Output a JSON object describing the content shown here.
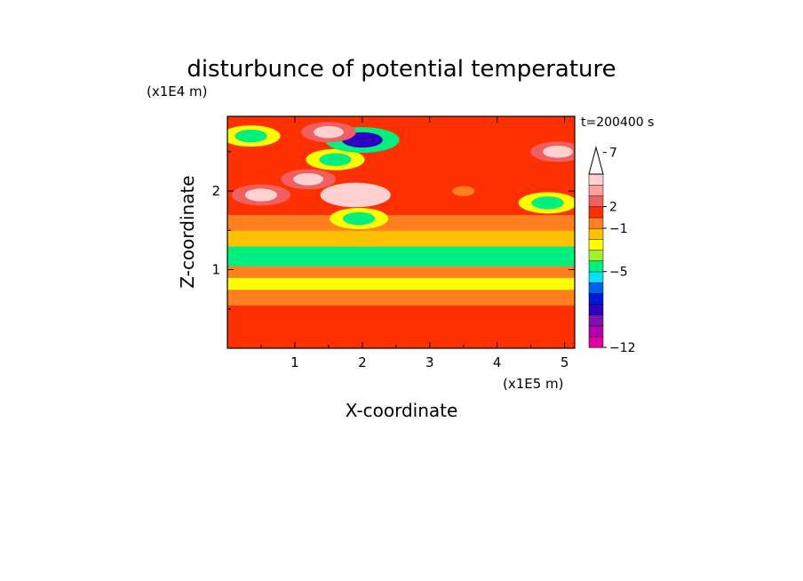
{
  "chart_data": {
    "type": "heatmap",
    "title": "disturbunce of potential temperature",
    "xlabel": "X-coordinate",
    "ylabel": "Z-coordinate",
    "x_scale_label": "(x1E5 m)",
    "y_scale_label": "(x1E4 m)",
    "time_label": "t=200400 s",
    "xlim": [
      0,
      5.15
    ],
    "ylim": [
      0,
      2.95
    ],
    "x_ticks": [
      1,
      2,
      3,
      4,
      5
    ],
    "y_ticks": [
      1,
      2
    ],
    "colorbar": {
      "levels": [
        -12,
        -11,
        -10,
        -9,
        -8,
        -7,
        -6,
        -5,
        -4,
        -3,
        -2,
        -1,
        1,
        2,
        3,
        4,
        5,
        6,
        7,
        8,
        9,
        10
      ],
      "tick_values": [
        -12,
        -5,
        -1,
        2,
        7
      ],
      "tick_labels": [
        "−12",
        "−5",
        "−1",
        "2",
        "7"
      ],
      "colors": [
        "#e000a0",
        "#b000b0",
        "#8010b0",
        "#3000c0",
        "#0018d8",
        "#0060f0",
        "#00e0ff",
        "#00f080",
        "#a0f030",
        "#ffff00",
        "#ffc000",
        "#ff8020",
        "#ff3000",
        "#f06060",
        "#ffa0a0",
        "#ffd0d0"
      ],
      "extend": "max"
    },
    "bands": [
      {
        "z_range": [
          0,
          0.1
        ],
        "mean_value": 1.5
      },
      {
        "z_range": [
          0.1,
          0.55
        ],
        "mean_value": 1.8
      },
      {
        "z_range": [
          0.55,
          0.75
        ],
        "mean_value": -0.5
      },
      {
        "z_range": [
          0.75,
          0.9
        ],
        "mean_value": -2.5
      },
      {
        "z_range": [
          0.9,
          1.05
        ],
        "mean_value": -1.0
      },
      {
        "z_range": [
          1.05,
          1.3
        ],
        "mean_value": -4.5
      },
      {
        "z_range": [
          1.3,
          1.5
        ],
        "mean_value": -1.5
      },
      {
        "z_range": [
          1.5,
          1.7
        ],
        "mean_value": 0.5
      },
      {
        "z_range": [
          1.7,
          2.95
        ],
        "mean_value": 1.5
      }
    ],
    "features": [
      {
        "x": 0.35,
        "z": 2.7,
        "value": -5
      },
      {
        "x": 1.6,
        "z": 2.4,
        "value": -5
      },
      {
        "x": 2.0,
        "z": 2.65,
        "value": -9
      },
      {
        "x": 1.95,
        "z": 1.65,
        "value": -5
      },
      {
        "x": 1.9,
        "z": 1.95,
        "value": 8
      },
      {
        "x": 0.5,
        "z": 1.95,
        "value": 5
      },
      {
        "x": 1.2,
        "z": 2.15,
        "value": 4
      },
      {
        "x": 1.5,
        "z": 2.75,
        "value": 4
      },
      {
        "x": 3.5,
        "z": 2.0,
        "value": 0.5
      },
      {
        "x": 4.9,
        "z": 2.5,
        "value": 4
      },
      {
        "x": 4.75,
        "z": 1.85,
        "value": -5
      }
    ]
  }
}
